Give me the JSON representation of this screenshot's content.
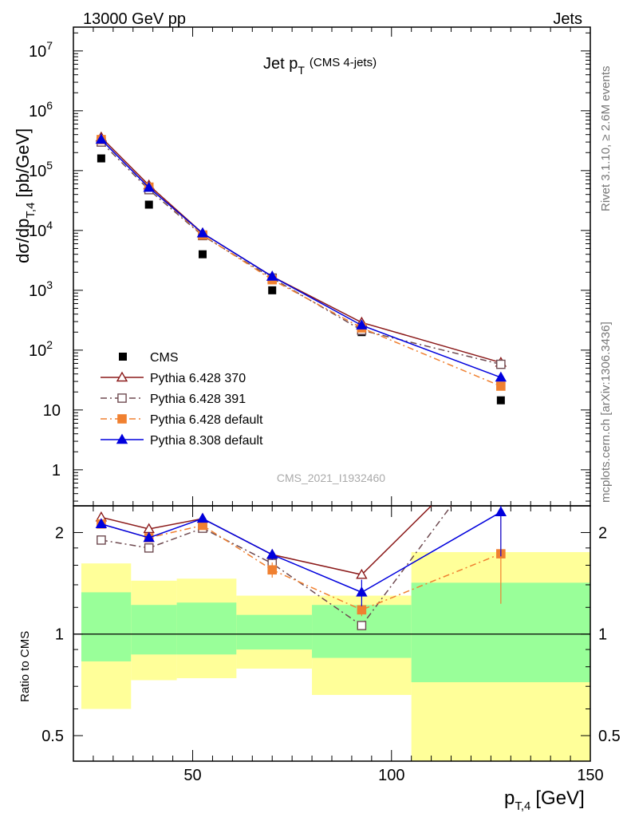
{
  "header": {
    "left": "13000 GeV pp",
    "right": "Jets"
  },
  "title": {
    "main": "Jet p",
    "sub": "T",
    "note": "(CMS 4-jets)"
  },
  "side_text": {
    "rivet": "Rivet 3.1.10, ≥ 2.6M events",
    "mcplots": "mcplots.cern.ch [arXiv:1306.3436]"
  },
  "watermark": "CMS_2021_I1932460",
  "colors": {
    "cms": "#000000",
    "p370": "#8b1a1a",
    "p391": "#6e4a50",
    "pdef": "#f08030",
    "p8": "#0000dd",
    "band_yellow": "#ffff99",
    "band_green": "#99ff99"
  },
  "chart_data": [
    {
      "type": "line",
      "scale": "log",
      "ylabel": "dσ/dp",
      "ylabel_sub": "T,4",
      "ylabel_unit": "[pb/GeV]",
      "ylim": [
        0.25,
        25000000
      ],
      "xlim": [
        20,
        150
      ],
      "y_ticks": [
        {
          "value": 10000000,
          "label": "10",
          "exp": "7"
        },
        {
          "value": 1000000,
          "label": "10",
          "exp": "6"
        },
        {
          "value": 100000,
          "label": "10",
          "exp": "5"
        },
        {
          "value": 10000,
          "label": "10",
          "exp": "4"
        },
        {
          "value": 1000,
          "label": "10",
          "exp": "3"
        },
        {
          "value": 100,
          "label": "10",
          "exp": "2"
        },
        {
          "value": 10,
          "label": "10",
          "exp": ""
        },
        {
          "value": 1,
          "label": "1",
          "exp": ""
        }
      ],
      "legend_position": "bottom-left",
      "series": [
        {
          "name": "CMS",
          "key": "cms",
          "style": "points",
          "x": [
            27,
            39,
            52.5,
            70,
            92.5,
            127.5
          ],
          "y": [
            160000,
            27000,
            4000,
            1000,
            200,
            14.5
          ]
        },
        {
          "name": "Pythia 6.428 370",
          "key": "p370",
          "style": "solid",
          "marker": "triangle-open",
          "x": [
            27,
            39,
            52.5,
            70,
            92.5,
            127.5
          ],
          "y": [
            360000,
            57000,
            9000,
            1700,
            290,
            62
          ]
        },
        {
          "name": "Pythia 6.428 391",
          "key": "p391",
          "style": "dashdot",
          "marker": "square-open",
          "x": [
            27,
            39,
            52.5,
            70,
            92.5,
            127.5
          ],
          "y": [
            300000,
            48000,
            8200,
            1600,
            215,
            58
          ]
        },
        {
          "name": "Pythia 6.428 default",
          "key": "pdef",
          "style": "dashdot",
          "marker": "square-filled",
          "x": [
            27,
            39,
            52.5,
            70,
            92.5,
            127.5
          ],
          "y": [
            330000,
            53000,
            8400,
            1500,
            235,
            25
          ]
        },
        {
          "name": "Pythia 8.308 default",
          "key": "p8",
          "style": "solid",
          "marker": "triangle-filled",
          "x": [
            27,
            39,
            52.5,
            70,
            92.5,
            127.5
          ],
          "y": [
            330000,
            52000,
            9000,
            1700,
            260,
            35
          ]
        }
      ]
    },
    {
      "type": "line",
      "scale": "log",
      "ylabel": "Ratio to CMS",
      "xlabel": "p",
      "xlabel_sub": "T,4",
      "xlabel_unit": "[GeV]",
      "xlim": [
        20,
        150
      ],
      "ylim": [
        0.42,
        2.4
      ],
      "x_ticks": [
        50,
        100,
        150
      ],
      "y_ticks": [
        {
          "value": 0.5,
          "label": "0.5"
        },
        {
          "value": 1,
          "label": "1"
        },
        {
          "value": 2,
          "label": "2"
        }
      ],
      "bands": [
        {
          "x0": 22,
          "x1": 34.5,
          "yellow": [
            0.6,
            1.62
          ],
          "green": [
            0.83,
            1.33
          ]
        },
        {
          "x0": 34.5,
          "x1": 46,
          "yellow": [
            0.73,
            1.44
          ],
          "green": [
            0.87,
            1.22
          ]
        },
        {
          "x0": 46,
          "x1": 61,
          "yellow": [
            0.74,
            1.46
          ],
          "green": [
            0.87,
            1.24
          ]
        },
        {
          "x0": 61,
          "x1": 80,
          "yellow": [
            0.79,
            1.3
          ],
          "green": [
            0.9,
            1.14
          ]
        },
        {
          "x0": 80,
          "x1": 105,
          "yellow": [
            0.66,
            1.3
          ],
          "green": [
            0.85,
            1.22
          ]
        },
        {
          "x0": 105,
          "x1": 150,
          "yellow": [
            0.4,
            1.75
          ],
          "green": [
            0.72,
            1.42
          ]
        }
      ],
      "series": [
        {
          "name": "Pythia 6.428 370",
          "key": "p370",
          "style": "solid",
          "marker": "triangle-open",
          "x": [
            27,
            39,
            52.5,
            70,
            92.5,
            110
          ],
          "y": [
            2.22,
            2.05,
            2.2,
            1.72,
            1.5,
            2.4
          ],
          "marker_count": 5
        },
        {
          "name": "Pythia 6.428 391",
          "key": "p391",
          "style": "dashdot",
          "marker": "square-open",
          "x": [
            27,
            39,
            52.5,
            70,
            92.5,
            115
          ],
          "y": [
            1.9,
            1.8,
            2.06,
            1.62,
            1.06,
            2.4
          ],
          "marker_count": 5
        },
        {
          "name": "Pythia 6.428 default",
          "key": "pdef",
          "style": "dashdot",
          "marker": "square-filled",
          "x": [
            27,
            39,
            52.5,
            70,
            92.5,
            127.5
          ],
          "y": [
            2.12,
            1.93,
            2.1,
            1.55,
            1.18,
            1.73
          ],
          "marker_count": 6,
          "err": [
            0,
            0,
            0,
            0.08,
            0.05,
            0.5
          ]
        },
        {
          "name": "Pythia 8.308 default",
          "key": "p8",
          "style": "solid",
          "marker": "triangle-filled",
          "x": [
            27,
            39,
            52.5,
            70,
            92.5,
            127.5
          ],
          "y": [
            2.12,
            1.93,
            2.2,
            1.72,
            1.33,
            2.3
          ],
          "marker_count": 6,
          "err": [
            0,
            0,
            0.05,
            0.06,
            0.12,
            0.6
          ]
        }
      ]
    }
  ]
}
